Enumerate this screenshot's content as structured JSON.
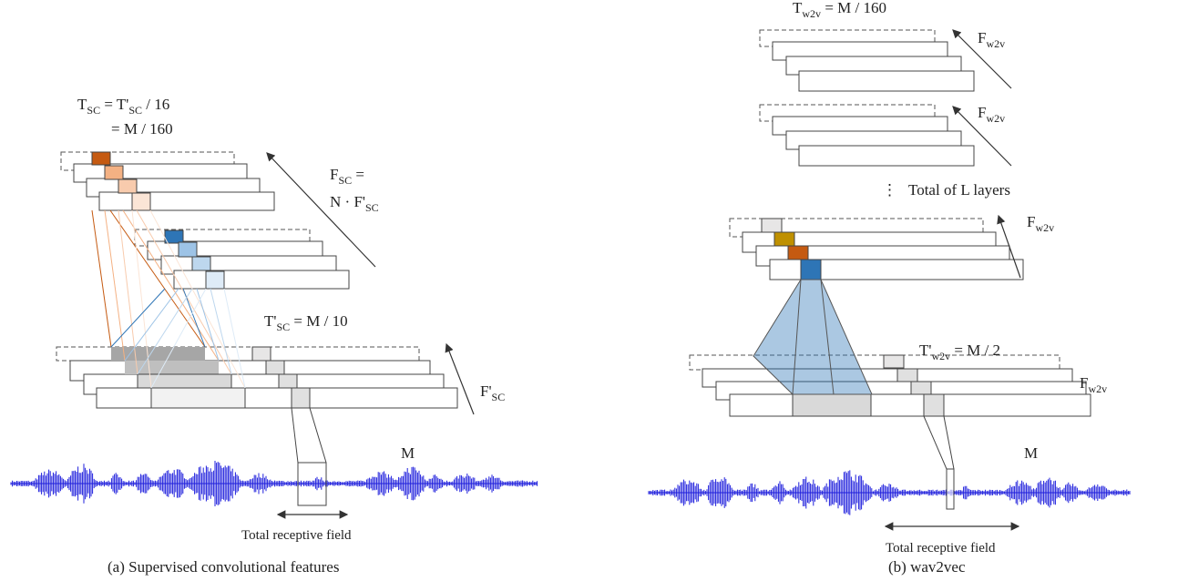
{
  "panel_a": {
    "t_sc": [
      {
        "t": "T"
      },
      {
        "t": "SC",
        "sub": true
      },
      {
        "t": " = T'"
      },
      {
        "t": "SC",
        "sub": true
      },
      {
        "t": " / 16"
      }
    ],
    "t_sc_2": [
      {
        "t": "= M / 160"
      }
    ],
    "f_sc": [
      {
        "t": "F"
      },
      {
        "t": "SC",
        "sub": true
      },
      {
        "t": " ="
      }
    ],
    "f_sc_2": [
      {
        "t": "N · F'"
      },
      {
        "t": "SC",
        "sub": true
      }
    ],
    "t_prime_sc": [
      {
        "t": "T'"
      },
      {
        "t": "SC",
        "sub": true
      },
      {
        "t": " = M / 10"
      }
    ],
    "f_prime_sc": [
      {
        "t": "F'"
      },
      {
        "t": "SC",
        "sub": true
      }
    ],
    "m": "M",
    "receptive_field": "Total receptive field",
    "caption": "(a) Supervised convolutional features"
  },
  "panel_b": {
    "t_w2v": [
      {
        "t": "T"
      },
      {
        "t": "w2v",
        "sub": true
      },
      {
        "t": " = M / 160"
      }
    ],
    "f_w2v": [
      [
        {
          "t": "F"
        },
        {
          "t": "w2v",
          "sub": true
        }
      ],
      [
        {
          "t": "F"
        },
        {
          "t": "w2v",
          "sub": true
        }
      ],
      [
        {
          "t": "F"
        },
        {
          "t": "w2v",
          "sub": true
        }
      ],
      [
        {
          "t": "F"
        },
        {
          "t": "w2v",
          "sub": true
        }
      ]
    ],
    "ellipsis": "⋮",
    "layers_note": "Total of L layers",
    "t_prime_w2v": [
      {
        "t": "T'"
      },
      {
        "t": "w2v",
        "sub": true
      },
      {
        "t": " = M / 2"
      }
    ],
    "m": "M",
    "receptive_field": "Total receptive field",
    "caption": "(b) wav2vec"
  }
}
